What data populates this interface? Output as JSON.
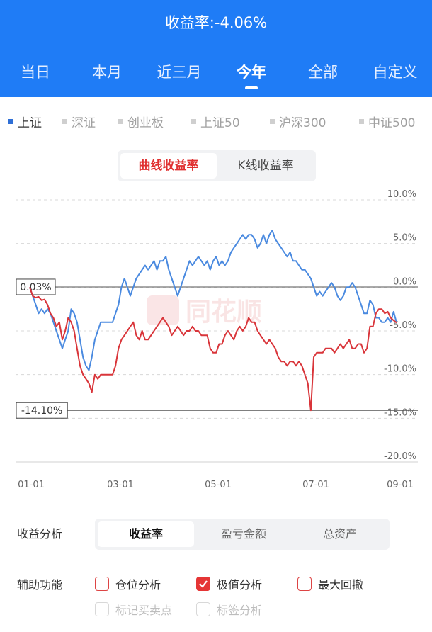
{
  "header": {
    "title": "收益率:-4.06%"
  },
  "tabs": [
    "当日",
    "本月",
    "近三月",
    "今年",
    "全部",
    "自定义"
  ],
  "active_tab": "今年",
  "indices": [
    "上证",
    "深证",
    "创业板",
    "上证50",
    "沪深300",
    "中证500"
  ],
  "active_index": "上证",
  "chart_toggle": {
    "active": "曲线收益率",
    "other": "K线收益率"
  },
  "watermark": "同花顺",
  "chart_data": {
    "type": "line",
    "x_ticks": [
      "01-01",
      "03-01",
      "05-01",
      "07-01",
      "09-01"
    ],
    "y_ticks": [
      "10.0%",
      "5.0%",
      "0.0%",
      "-5.0%",
      "-10.0%",
      "-15.0%",
      "-20.0%"
    ],
    "ylim": [
      -20,
      10
    ],
    "annotations": [
      "0.03%",
      "-14.10%"
    ],
    "annotation_values": [
      0.03,
      -14.1
    ],
    "colors": {
      "index": "#4a8ae0",
      "portfolio": "#d9353a",
      "ref": "#555555"
    },
    "series": [
      {
        "values": [
          0,
          -1,
          -2,
          -3,
          -2.5,
          -3,
          -2.5,
          -3,
          -4,
          -5,
          -6,
          -7,
          -6,
          -5,
          -2.5,
          -3,
          -4,
          -6,
          -8,
          -9,
          -9.5,
          -8,
          -6,
          -5,
          -4,
          -4,
          -4,
          -4,
          -4,
          -3,
          -2,
          0,
          1,
          0,
          -1,
          0,
          1,
          1.5,
          2,
          2.5,
          2,
          2.5,
          3,
          2,
          3,
          3,
          3.5,
          2,
          1,
          0,
          -1,
          0,
          1,
          2,
          3,
          2.5,
          3,
          3.5,
          3,
          2.5,
          3,
          2,
          3,
          3.5,
          2.5,
          3,
          2.5,
          3,
          4,
          4.5,
          5,
          5.5,
          6,
          5.5,
          6,
          6,
          5.5,
          4.5,
          5,
          6,
          5,
          6,
          6.5,
          5.5,
          5,
          4.5,
          4,
          3.5,
          4,
          3,
          3,
          2.5,
          2,
          2,
          1.5,
          1,
          0,
          -1,
          -0.5,
          -1,
          -0.5,
          0,
          0.5,
          0,
          -1,
          -1.5,
          -1,
          0,
          0,
          0.5,
          0,
          -1,
          -2,
          -3,
          -3,
          -1.5,
          -2,
          -3.5,
          -3.5,
          -4,
          -4,
          -3.5,
          -4,
          -2.8,
          -4.06
        ]
      },
      {
        "values": [
          0,
          -1,
          -1.2,
          -1.1,
          -1.5,
          -1.4,
          -2,
          -3,
          -3.5,
          -4.5,
          -4,
          -6,
          -5,
          -3.5,
          -4,
          -5,
          -7,
          -9,
          -10,
          -10.5,
          -11,
          -12,
          -10,
          -10.5,
          -10,
          -10,
          -10,
          -10,
          -10,
          -9,
          -7,
          -6,
          -5.5,
          -5,
          -4.5,
          -4,
          -5.5,
          -6,
          -5,
          -6,
          -6,
          -5.5,
          -5,
          -4.5,
          -4,
          -3.5,
          -4,
          -4.5,
          -5.5,
          -5,
          -4.5,
          -5,
          -5.5,
          -5,
          -5,
          -4.5,
          -5,
          -5,
          -5.5,
          -5.5,
          -5.5,
          -7,
          -7.5,
          -7.5,
          -6.5,
          -6.5,
          -5.5,
          -5,
          -5.5,
          -6,
          -5,
          -4.5,
          -5,
          -4.5,
          -3.5,
          -4,
          -4,
          -5,
          -5.5,
          -6,
          -6.5,
          -6,
          -6.5,
          -7,
          -8,
          -8.5,
          -8.5,
          -9,
          -8.5,
          -8.5,
          -9,
          -8.5,
          -9,
          -10,
          -11,
          -14.1,
          -8,
          -7.5,
          -7.5,
          -7.5,
          -7,
          -7,
          -7,
          -7.5,
          -7,
          -6.5,
          -7,
          -6.5,
          -6,
          -7,
          -7,
          -6.5,
          -6.5,
          -7.5,
          -7,
          -4.5,
          -4.5,
          -3,
          -2.5,
          -2.5,
          -3,
          -2.8,
          -3.5,
          -3.8,
          -4.06
        ]
      }
    ]
  },
  "analysis": {
    "label": "收益分析",
    "options": [
      "收益率",
      "盈亏金额",
      "总资产"
    ],
    "active": "收益率"
  },
  "aux": {
    "label": "辅助功能",
    "items": [
      {
        "label": "仓位分析",
        "checked": false,
        "disabled": false
      },
      {
        "label": "极值分析",
        "checked": true,
        "disabled": false
      },
      {
        "label": "最大回撤",
        "checked": false,
        "disabled": false
      },
      {
        "label": "标记买卖点",
        "checked": false,
        "disabled": true
      },
      {
        "label": "标签分析",
        "checked": false,
        "disabled": true
      }
    ]
  }
}
